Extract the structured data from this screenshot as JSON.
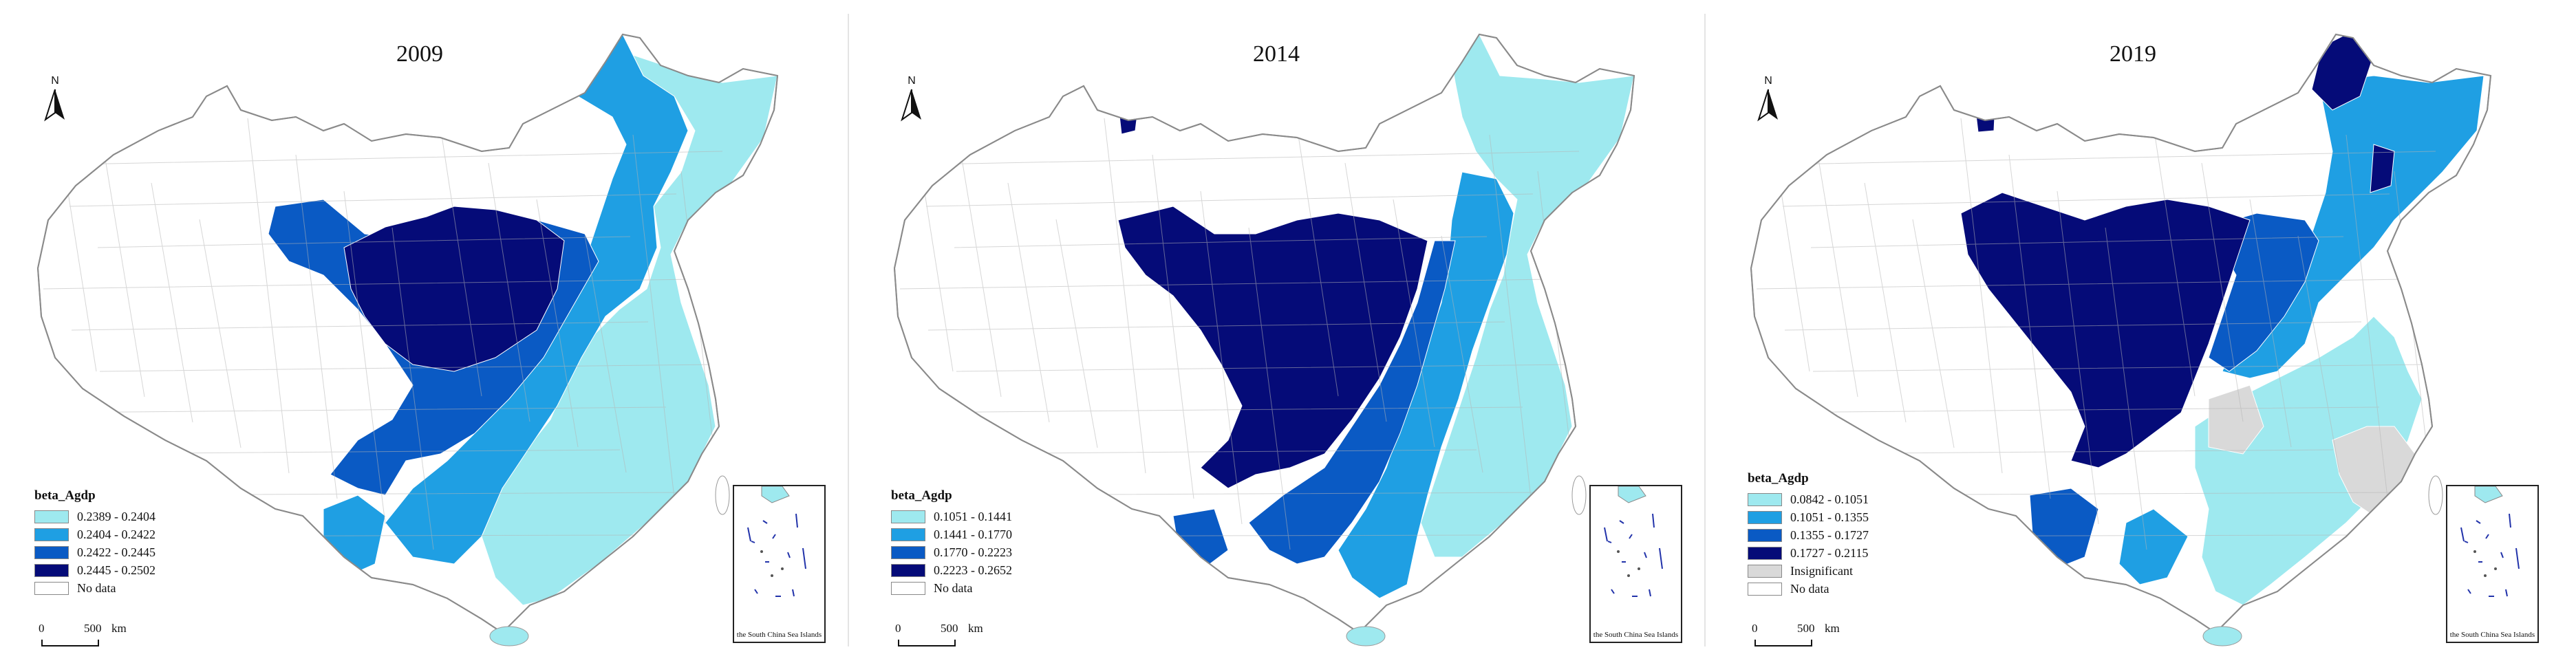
{
  "colors": {
    "class1": "#9ee9ef",
    "class2": "#1f9fe3",
    "class3": "#0a5ac4",
    "class4": "#050b78",
    "insignificant": "#d9d9d9",
    "no_data": "#ffffff",
    "border": "#9a9a9a"
  },
  "north_label": "N",
  "scale": {
    "zero": "0",
    "mid": "500",
    "unit": "km"
  },
  "inset_caption": "the South China Sea Islands",
  "panels": [
    {
      "year": "2009",
      "legend_title": "beta_Agdp",
      "legend": [
        {
          "label": "0.2389 - 0.2404",
          "color": "#9ee9ef"
        },
        {
          "label": "0.2404 - 0.2422",
          "color": "#1f9fe3"
        },
        {
          "label": "0.2422 - 0.2445",
          "color": "#0a5ac4"
        },
        {
          "label": "0.2445 - 0.2502",
          "color": "#050b78"
        },
        {
          "label": "No data",
          "color": "#ffffff"
        }
      ],
      "zones": [
        "#9ee9ef",
        "#1f9fe3",
        "#0a5ac4",
        "#050b78"
      ]
    },
    {
      "year": "2014",
      "legend_title": "beta_Agdp",
      "legend": [
        {
          "label": "0.1051 - 0.1441",
          "color": "#9ee9ef"
        },
        {
          "label": "0.1441 - 0.1770",
          "color": "#1f9fe3"
        },
        {
          "label": "0.1770 - 0.2223",
          "color": "#0a5ac4"
        },
        {
          "label": "0.2223 - 0.2652",
          "color": "#050b78"
        },
        {
          "label": "No data",
          "color": "#ffffff"
        }
      ],
      "zones": [
        "#9ee9ef",
        "#1f9fe3",
        "#0a5ac4",
        "#050b78"
      ]
    },
    {
      "year": "2019",
      "legend_title": "beta_Agdp",
      "legend": [
        {
          "label": "0.0842 - 0.1051",
          "color": "#9ee9ef"
        },
        {
          "label": "0.1051 - 0.1355",
          "color": "#1f9fe3"
        },
        {
          "label": "0.1355 - 0.1727",
          "color": "#0a5ac4"
        },
        {
          "label": "0.1727 - 0.2115",
          "color": "#050b78"
        },
        {
          "label": "Insignificant",
          "color": "#d9d9d9"
        },
        {
          "label": "No data",
          "color": "#ffffff"
        }
      ],
      "zones": [
        "#9ee9ef",
        "#1f9fe3",
        "#0a5ac4",
        "#050b78"
      ]
    }
  ]
}
